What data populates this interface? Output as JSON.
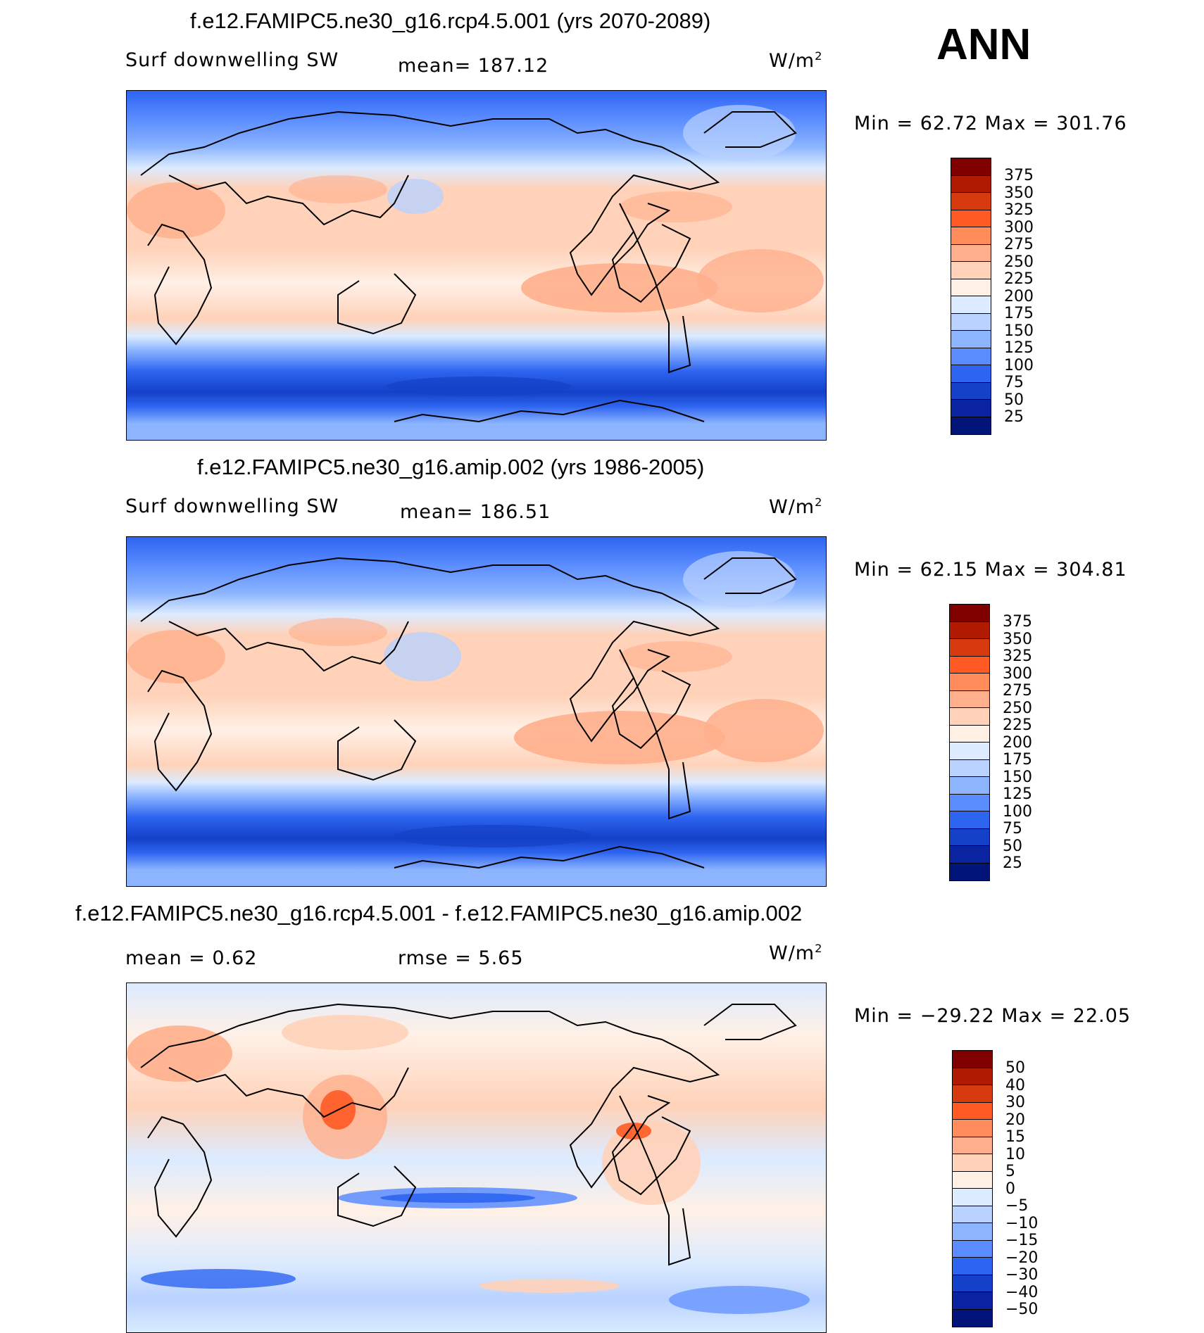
{
  "season": "ANN",
  "units_prefix": "W/m",
  "units_power": "2",
  "panels": [
    {
      "title": "f.e12.FAMIPC5.ne30_g16.rcp4.5.001 (yrs 2070-2089)",
      "variable": "Surf downwelling SW",
      "stat_text": "mean=  187.12",
      "range_text": "Min =    62.72  Max  =  301.76",
      "colorbar": {
        "labels": [
          "375",
          "350",
          "325",
          "300",
          "275",
          "250",
          "225",
          "200",
          "175",
          "150",
          "125",
          "100",
          "75",
          "50",
          "25"
        ],
        "colors": [
          "#800000",
          "#b01a00",
          "#d63a0e",
          "#ff5a23",
          "#ff8c5a",
          "#ffaf8c",
          "#ffd2b9",
          "#fff0e6",
          "#dcebff",
          "#b9d2ff",
          "#8cb4ff",
          "#5a8cff",
          "#2d64f0",
          "#1441c8",
          "#0a23a0",
          "#00147a"
        ]
      }
    },
    {
      "title": "f.e12.FAMIPC5.ne30_g16.amip.002 (yrs 1986-2005)",
      "variable": "Surf downwelling SW",
      "stat_text": "mean=  186.51",
      "range_text": "Min =    62.15  Max  =  304.81",
      "colorbar": {
        "labels": [
          "375",
          "350",
          "325",
          "300",
          "275",
          "250",
          "225",
          "200",
          "175",
          "150",
          "125",
          "100",
          "75",
          "50",
          "25"
        ],
        "colors": [
          "#800000",
          "#b01a00",
          "#d63a0e",
          "#ff5a23",
          "#ff8c5a",
          "#ffaf8c",
          "#ffd2b9",
          "#fff0e6",
          "#dcebff",
          "#b9d2ff",
          "#8cb4ff",
          "#5a8cff",
          "#2d64f0",
          "#1441c8",
          "#0a23a0",
          "#00147a"
        ]
      }
    },
    {
      "title": "f.e12.FAMIPC5.ne30_g16.rcp4.5.001 - f.e12.FAMIPC5.ne30_g16.amip.002",
      "variable": "mean =     0.62",
      "stat_text": "rmse =     5.65",
      "range_text": "Min = −29.22  Max  =    22.05",
      "colorbar": {
        "labels": [
          "50",
          "40",
          "30",
          "20",
          "15",
          "10",
          "5",
          "0",
          "−5",
          "−10",
          "−15",
          "−20",
          "−30",
          "−40",
          "−50"
        ],
        "colors": [
          "#800000",
          "#b01a00",
          "#d63a0e",
          "#ff5a23",
          "#ff8c5a",
          "#ffaf8c",
          "#ffd2b9",
          "#fff0e6",
          "#dcebff",
          "#b9d2ff",
          "#8cb4ff",
          "#5a8cff",
          "#2d64f0",
          "#1441c8",
          "#0a23a0",
          "#00147a"
        ]
      }
    }
  ]
}
